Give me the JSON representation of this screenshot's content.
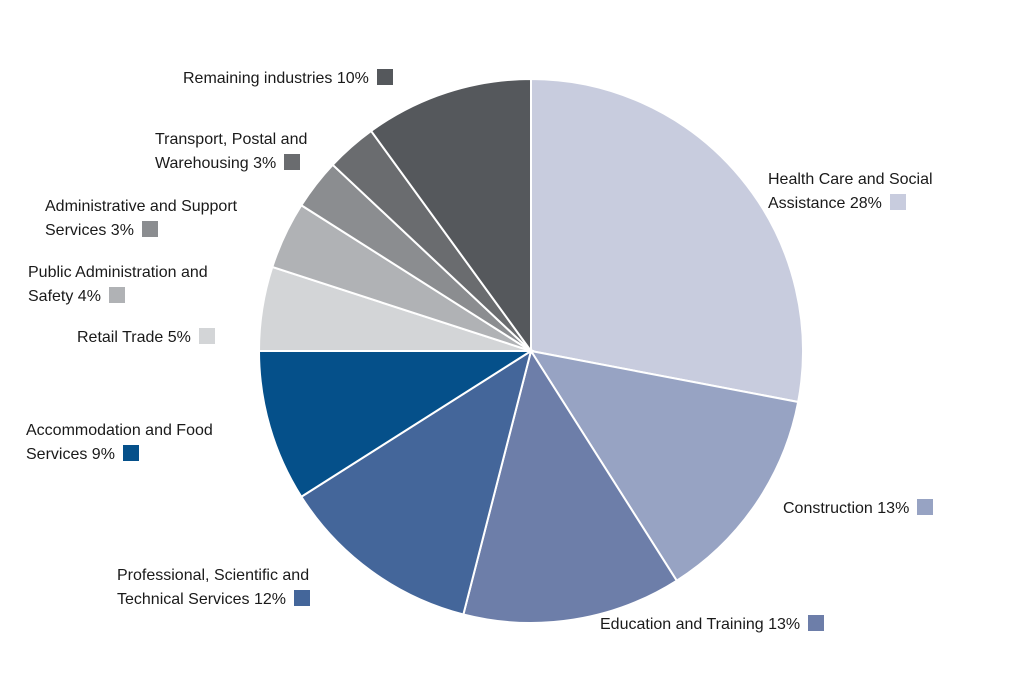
{
  "chart_data": {
    "type": "pie",
    "start_angle_deg": 0,
    "direction": "clockwise",
    "slices": [
      {
        "label_lines": [
          "Health Care and Social",
          "Assistance 28%"
        ],
        "value": 28,
        "color": "#c8ccde"
      },
      {
        "label_lines": [
          "Construction 13%"
        ],
        "value": 13,
        "color": "#97a3c3"
      },
      {
        "label_lines": [
          "Education and Training 13%"
        ],
        "value": 13,
        "color": "#6d7ea9"
      },
      {
        "label_lines": [
          "Professional, Scientific and",
          "Technical Services 12%"
        ],
        "value": 12,
        "color": "#44669a"
      },
      {
        "label_lines": [
          "Accommodation and Food",
          "Services 9%"
        ],
        "value": 9,
        "color": "#05508a"
      },
      {
        "label_lines": [
          "Retail Trade 5%"
        ],
        "value": 5,
        "color": "#d3d5d7"
      },
      {
        "label_lines": [
          "Public Administration and",
          "Safety 4%"
        ],
        "value": 4,
        "color": "#b0b2b5"
      },
      {
        "label_lines": [
          "Administrative and Support",
          "Services 3%"
        ],
        "value": 3,
        "color": "#8b8d90"
      },
      {
        "label_lines": [
          "Transport, Postal and",
          "Warehousing 3%"
        ],
        "value": 3,
        "color": "#6a6c6f"
      },
      {
        "label_lines": [
          "Remaining industries 10%"
        ],
        "value": 10,
        "color": "#55585c"
      }
    ]
  }
}
